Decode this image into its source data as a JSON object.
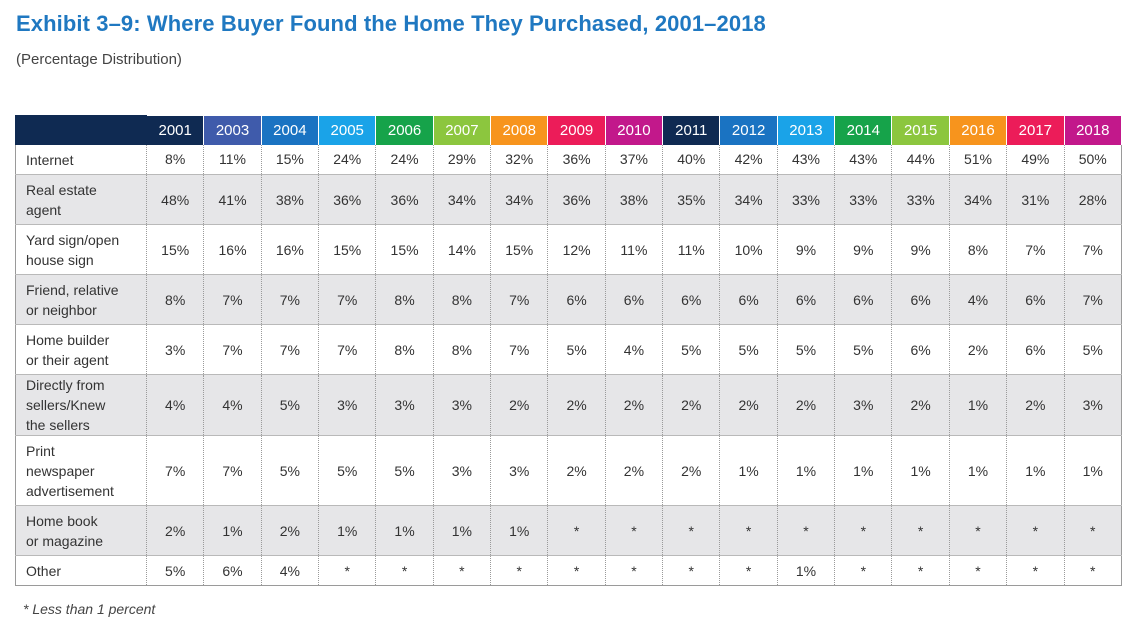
{
  "title": "Exhibit 3–9:  Where Buyer Found the Home They Purchased, 2001–2018",
  "subtitle": "(Percentage Distribution)",
  "footnote": "* Less than 1 percent",
  "year_colors": [
    "#0f2a52",
    "#3f5bab",
    "#1a73c2",
    "#1aa3e8",
    "#16a34a",
    "#8cc63e",
    "#f7941d",
    "#ec1c59",
    "#c2188b",
    "#0f2a52",
    "#1a73c2",
    "#1aa3e8",
    "#16a34a",
    "#8cc63e",
    "#f7941d",
    "#ec1c59",
    "#c2188b"
  ],
  "chart_data": {
    "type": "table",
    "columns": [
      "2001",
      "2003",
      "2004",
      "2005",
      "2006",
      "2007",
      "2008",
      "2009",
      "2010",
      "2011",
      "2012",
      "2013",
      "2014",
      "2015",
      "2016",
      "2017",
      "2018"
    ],
    "rows": [
      {
        "label": [
          "Internet"
        ],
        "values": [
          "8%",
          "11%",
          "15%",
          "24%",
          "24%",
          "29%",
          "32%",
          "36%",
          "37%",
          "40%",
          "42%",
          "43%",
          "43%",
          "44%",
          "51%",
          "49%",
          "50%"
        ]
      },
      {
        "label": [
          "Real estate",
          "agent"
        ],
        "values": [
          "48%",
          "41%",
          "38%",
          "36%",
          "36%",
          "34%",
          "34%",
          "36%",
          "38%",
          "35%",
          "34%",
          "33%",
          "33%",
          "33%",
          "34%",
          "31%",
          "28%"
        ]
      },
      {
        "label": [
          "Yard sign/open",
          "house sign"
        ],
        "values": [
          "15%",
          "16%",
          "16%",
          "15%",
          "15%",
          "14%",
          "15%",
          "12%",
          "11%",
          "11%",
          "10%",
          "9%",
          "9%",
          "9%",
          "8%",
          "7%",
          "7%"
        ]
      },
      {
        "label": [
          "Friend, relative",
          "or neighbor"
        ],
        "values": [
          "8%",
          "7%",
          "7%",
          "7%",
          "8%",
          "8%",
          "7%",
          "6%",
          "6%",
          "6%",
          "6%",
          "6%",
          "6%",
          "6%",
          "4%",
          "6%",
          "7%"
        ]
      },
      {
        "label": [
          "Home builder",
          "or their agent"
        ],
        "values": [
          "3%",
          "7%",
          "7%",
          "7%",
          "8%",
          "8%",
          "7%",
          "5%",
          "4%",
          "5%",
          "5%",
          "5%",
          "5%",
          "6%",
          "2%",
          "6%",
          "5%"
        ]
      },
      {
        "label": [
          "Directly from",
          "sellers/Knew",
          "the sellers"
        ],
        "values": [
          "4%",
          "4%",
          "5%",
          "3%",
          "3%",
          "3%",
          "2%",
          "2%",
          "2%",
          "2%",
          "2%",
          "2%",
          "3%",
          "2%",
          "1%",
          "2%",
          "3%"
        ]
      },
      {
        "label": [
          "Print",
          "newspaper",
          "advertisement"
        ],
        "values": [
          "7%",
          "7%",
          "5%",
          "5%",
          "5%",
          "3%",
          "3%",
          "2%",
          "2%",
          "2%",
          "1%",
          "1%",
          "1%",
          "1%",
          "1%",
          "1%",
          "1%"
        ]
      },
      {
        "label": [
          "Home book",
          "or magazine"
        ],
        "values": [
          "2%",
          "1%",
          "2%",
          "1%",
          "1%",
          "1%",
          "1%",
          "*",
          "*",
          "*",
          "*",
          "*",
          "*",
          "*",
          "*",
          "*",
          "*"
        ]
      },
      {
        "label": [
          "Other"
        ],
        "values": [
          "5%",
          "6%",
          "4%",
          "*",
          "*",
          "*",
          "*",
          "*",
          "*",
          "*",
          "*",
          "1%",
          "*",
          "*",
          "*",
          "*",
          "*"
        ]
      }
    ]
  }
}
